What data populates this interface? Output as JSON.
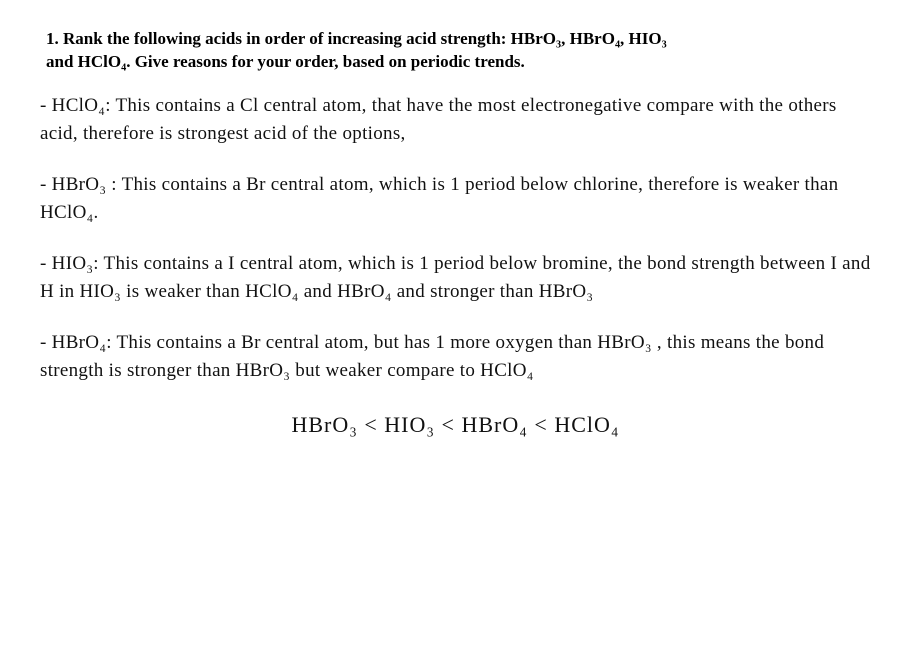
{
  "colors": {
    "background": "#ffffff",
    "text": "#000000",
    "handwriting": "#111111"
  },
  "typography": {
    "question_font": "Times New Roman",
    "question_weight": "bold",
    "question_size_pt": 13,
    "handwritten_font": "Comic Sans MS / cursive",
    "handwritten_size_pt": 15,
    "final_size_pt": 17
  },
  "question": {
    "number": "1.",
    "text_line1": "1. Rank the following acids in order of increasing acid strength: HBrO₃, HBrO₄, HIO₃",
    "text_line2": "and HClO₄. Give reasons for your order, based on periodic trends."
  },
  "answers": {
    "hclo4": "- HClO₄: This contains a Cl central atom, that have the most electronegative compare with the others acid, therefore is strongest acid of the options,",
    "hbro3": "- HBrO₃ : This contains a Br central atom, which is 1 period below chlorine, therefore is weaker than HClO₄.",
    "hio3": "- HIO₃: This contains a I central atom, which is 1 period below bromine, the bond strength between I and H in HIO₃ is weaker than HClO₄ and HBrO₄ and stronger than HBrO₃",
    "hbro4": "- HBrO₄: This contains a Br central atom, but has 1 more oxygen than HBrO₃ , this means the bond strength is stronger than HBrO₃ but weaker compare to HClO₄"
  },
  "final_ranking": "HBrO₃  <  HIO₃  <  HBrO₄  <  HClO₄"
}
